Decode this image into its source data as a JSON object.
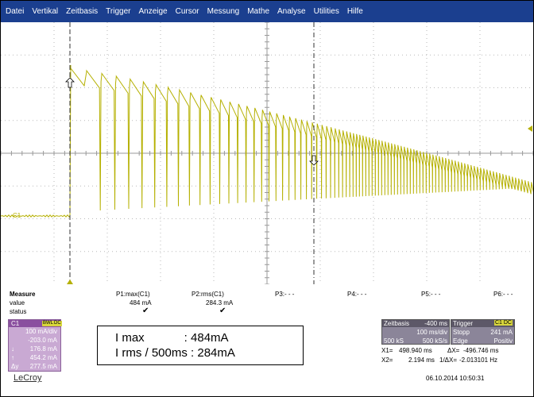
{
  "menu": [
    "Datei",
    "Vertikal",
    "Zeitbasis",
    "Trigger",
    "Anzeige",
    "Cursor",
    "Messung",
    "Mathe",
    "Analyse",
    "Utilities",
    "Hilfe"
  ],
  "trace_color": "#b5b000",
  "grid_color": "#b9b9b9",
  "channel_label": "C1",
  "measure": {
    "header": "Measure",
    "row_value": "value",
    "row_status": "status",
    "params": [
      {
        "name": "P1:max(C1)",
        "value": "484 mA",
        "status": "✔"
      },
      {
        "name": "P2:rms(C1)",
        "value": "284.3 mA",
        "status": "✔"
      },
      {
        "name": "P3:- - -",
        "value": "",
        "status": ""
      },
      {
        "name": "P4:- - -",
        "value": "",
        "status": ""
      },
      {
        "name": "P5:- - -",
        "value": "",
        "status": ""
      },
      {
        "name": "P6:- - -",
        "value": "",
        "status": ""
      }
    ]
  },
  "c1_panel": {
    "label": "C1",
    "badge1": "BWL",
    "badge2": "DC",
    "volts_div": "100 mA/div",
    "offset": "-203.0 mA",
    "cursor1": "176.8 mA",
    "cursor2": "454.2 mA",
    "delta": "277.5 mA",
    "sym1": "↓",
    "sym2": "↑",
    "sym3": "Δy"
  },
  "annotation": {
    "line1": "I max            : 484mA",
    "line2": "I rms / 500ms : 284mA"
  },
  "timebase": {
    "title": "Zeitbasis",
    "delay": "-400 ms",
    "div": "100 ms/div",
    "samples": "500 kS",
    "rate": "500 kS/s"
  },
  "trigger": {
    "title": "Trigger",
    "badge": "C1 DC",
    "mode": "Stopp",
    "level": "241 mA",
    "type": "Edge",
    "slope": "Positiv"
  },
  "cursor_readout": {
    "x1_label": "X1=",
    "x1": "498.940 ms",
    "dx_label": "ΔX=",
    "dx": "-496.746 ms",
    "x2_label": "X2=",
    "x2": "2.194 ms",
    "inv_label": "1/ΔX=",
    "inv": "-2.013101 Hz"
  },
  "timestamp": "06.10.2014 10:50:31",
  "brand": "LeCroy"
}
